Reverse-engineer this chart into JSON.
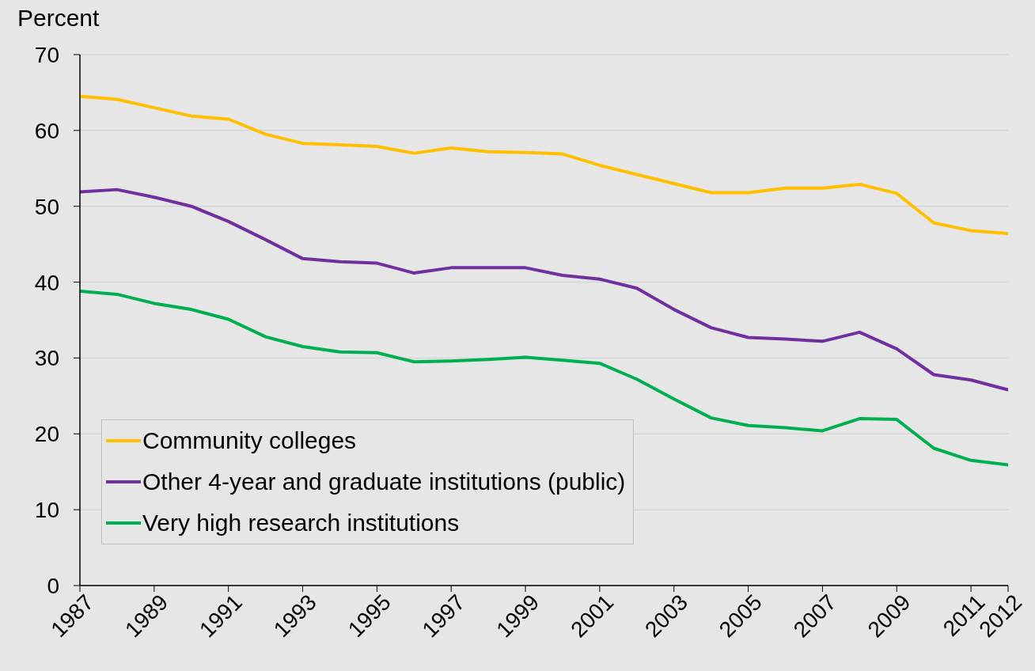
{
  "chart_data": {
    "type": "line",
    "ylabel": "Percent",
    "x": [
      1987,
      1988,
      1989,
      1990,
      1991,
      1992,
      1993,
      1994,
      1995,
      1996,
      1997,
      1998,
      1999,
      2000,
      2001,
      2002,
      2003,
      2004,
      2005,
      2006,
      2007,
      2008,
      2009,
      2010,
      2011,
      2012
    ],
    "xlim": [
      1987,
      2012
    ],
    "xticks": [
      1987,
      1989,
      1991,
      1993,
      1995,
      1997,
      1999,
      2001,
      2003,
      2005,
      2007,
      2009,
      2011,
      2012
    ],
    "ylim": [
      0,
      70
    ],
    "yticks": [
      0,
      10,
      20,
      30,
      40,
      50,
      60,
      70
    ],
    "grid": "y",
    "legend": "bottom left",
    "series": [
      {
        "name": "Community colleges",
        "color": "#ffc000",
        "values": [
          64.5,
          64.1,
          63.0,
          61.9,
          61.5,
          59.5,
          58.3,
          58.1,
          57.9,
          57.0,
          57.7,
          57.2,
          57.1,
          56.9,
          55.4,
          54.2,
          53.0,
          51.8,
          51.8,
          52.4,
          52.4,
          52.9,
          51.7,
          47.8,
          46.8,
          46.4
        ]
      },
      {
        "name": "Other 4-year and graduate institutions (public)",
        "color": "#7030a0",
        "values": [
          51.9,
          52.2,
          51.2,
          50.0,
          48.0,
          45.6,
          43.1,
          42.7,
          42.5,
          41.2,
          41.9,
          41.9,
          41.9,
          40.9,
          40.4,
          39.2,
          36.4,
          34.0,
          32.7,
          32.5,
          32.2,
          33.4,
          31.2,
          27.8,
          27.1,
          25.8
        ]
      },
      {
        "name": "Very high research institutions",
        "color": "#00b050",
        "values": [
          38.8,
          38.4,
          37.2,
          36.4,
          35.1,
          32.8,
          31.5,
          30.8,
          30.7,
          29.5,
          29.6,
          29.8,
          30.1,
          29.7,
          29.3,
          27.2,
          24.6,
          22.1,
          21.1,
          20.8,
          20.4,
          22.0,
          21.9,
          18.1,
          16.5,
          15.9
        ]
      }
    ]
  }
}
